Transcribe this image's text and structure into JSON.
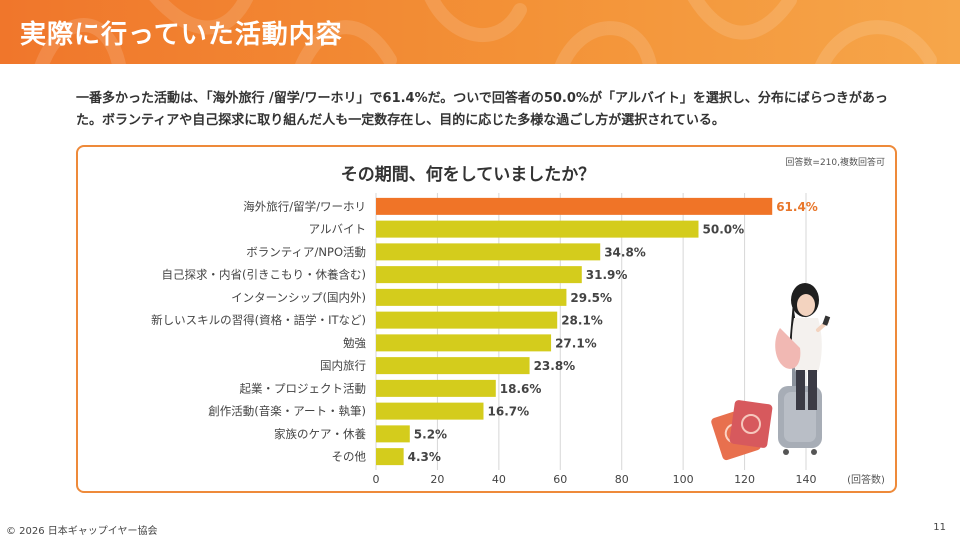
{
  "header": {
    "title": "実際に行っていた活動内容"
  },
  "summary": {
    "text": "一番多かった活動は、「海外旅行 /留学/ワーホリ」で61.4%だ。ついで回答者の50.0%が「アルバイト」を選択し、分布にばらつきがあった。ボランティアや自己探求に取り組んだ人も一定数存在し、目的に応じた多様な過ごし方が選択されている。"
  },
  "chart_card": {
    "title": "その期間、何をしていましたか？",
    "note": "回答数=210,複数回答可"
  },
  "chart_data": {
    "type": "bar",
    "orientation": "horizontal",
    "title": "その期間、何をしていましたか？",
    "xlabel": "(回答数)",
    "xlim": [
      0,
      140
    ],
    "xticks": [
      0,
      20,
      40,
      60,
      80,
      100,
      120,
      140
    ],
    "grid": true,
    "categories": [
      "海外旅行/留学/ワーホリ",
      "アルバイト",
      "ボランティア/NPO活動",
      "自己探求・内省(引きこもり・休養含む)",
      "インターンシップ(国内外)",
      "新しいスキルの習得(資格・語学・ITなど)",
      "勉強",
      "国内旅行",
      "起業・プロジェクト活動",
      "創作活動(音楽・アート・執筆)",
      "家族のケア・休養",
      "その他"
    ],
    "values": [
      129,
      105,
      73,
      67,
      62,
      59,
      57,
      50,
      39,
      35,
      11,
      9
    ],
    "labels": [
      "61.4%",
      "50.0%",
      "34.8%",
      "31.9%",
      "29.5%",
      "28.1%",
      "27.1%",
      "23.8%",
      "18.6%",
      "16.7%",
      "5.2%",
      "4.3%"
    ],
    "colors": {
      "highlight": "#f07427",
      "default": "#d4cc1c",
      "highlight_label": "#e8762a",
      "label": "#444444"
    }
  },
  "footer": {
    "copyright": "© 2026 日本ギャップイヤー協会",
    "page": "11"
  }
}
